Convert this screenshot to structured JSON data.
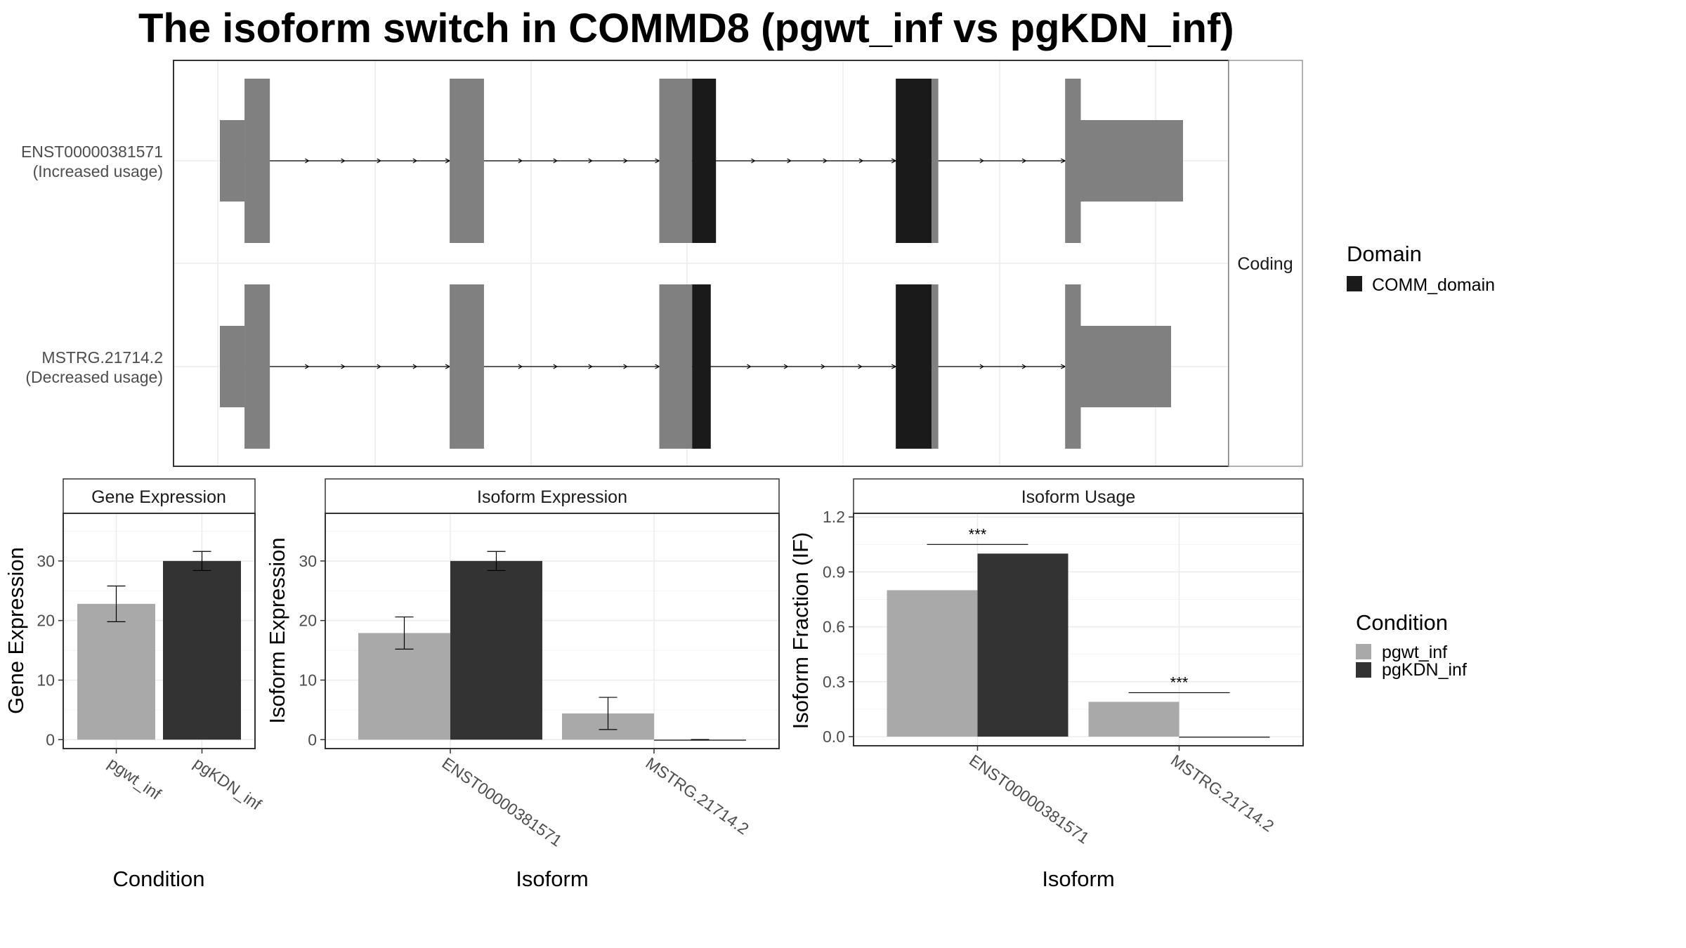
{
  "title": "The isoform switch in COMMD8 (pgwt_inf vs pgKDN_inf)",
  "colors": {
    "exon": "#808080",
    "domain": "#1a1a1a",
    "pgwt_inf": "#a9a9a9",
    "pgKDN_inf": "#333333",
    "grid": "#ebebeb",
    "panel_border": "#333333",
    "strip_border": "#999999"
  },
  "structure_panel": {
    "facet_label": "Coding",
    "isoforms": [
      {
        "id": "ENST00000381571",
        "label_line1": "ENST00000381571",
        "label_line2": "(Increased usage)",
        "exons": [
          {
            "start": 0.0,
            "end": 3.3,
            "kind": "utr"
          },
          {
            "start": 3.3,
            "end": 6.7,
            "kind": "cds"
          },
          {
            "start": 30.8,
            "end": 35.4,
            "kind": "cds"
          },
          {
            "start": 58.9,
            "end": 63.3,
            "kind": "cds"
          },
          {
            "start": 63.3,
            "end": 66.5,
            "kind": "domain"
          },
          {
            "start": 90.6,
            "end": 95.4,
            "kind": "domain"
          },
          {
            "start": 95.4,
            "end": 96.3,
            "kind": "cds"
          },
          {
            "start": 113.3,
            "end": 115.4,
            "kind": "cds"
          },
          {
            "start": 115.4,
            "end": 129.1,
            "kind": "utr"
          }
        ]
      },
      {
        "id": "MSTRG.21714.2",
        "label_line1": "MSTRG.21714.2",
        "label_line2": "(Decreased usage)",
        "exons": [
          {
            "start": 0.0,
            "end": 3.3,
            "kind": "utr"
          },
          {
            "start": 3.3,
            "end": 6.7,
            "kind": "cds"
          },
          {
            "start": 30.8,
            "end": 35.4,
            "kind": "cds"
          },
          {
            "start": 58.9,
            "end": 63.3,
            "kind": "cds"
          },
          {
            "start": 63.3,
            "end": 65.8,
            "kind": "domain"
          },
          {
            "start": 90.6,
            "end": 95.4,
            "kind": "domain"
          },
          {
            "start": 95.4,
            "end": 96.3,
            "kind": "cds"
          },
          {
            "start": 113.3,
            "end": 115.4,
            "kind": "cds"
          },
          {
            "start": 115.4,
            "end": 127.5,
            "kind": "utr"
          }
        ]
      }
    ],
    "legend": {
      "title": "Domain",
      "items": [
        {
          "label": "COMM_domain"
        }
      ]
    }
  },
  "chart_data": [
    {
      "type": "bar",
      "facet_title": "Gene Expression",
      "xlabel": "Condition",
      "ylabel": "Gene Expression",
      "ylim": [
        -1.5,
        38
      ],
      "yticks": [
        0,
        10,
        20,
        30
      ],
      "categories": [
        "pgwt_inf",
        "pgKDN_inf"
      ],
      "series": [
        {
          "name": "pgwt_inf",
          "values": [
            22.8,
            null
          ],
          "err_low": [
            19.8,
            null
          ],
          "err_high": [
            25.8,
            null
          ]
        },
        {
          "name": "pgKDN_inf",
          "values": [
            null,
            30.0
          ],
          "err_low": [
            null,
            28.4
          ],
          "err_high": [
            null,
            31.6
          ]
        }
      ]
    },
    {
      "type": "bar",
      "facet_title": "Isoform Expression",
      "xlabel": "Isoform",
      "ylabel": "Isoform Expression",
      "ylim": [
        -1.5,
        38
      ],
      "yticks": [
        0,
        10,
        20,
        30
      ],
      "categories": [
        "ENST00000381571",
        "MSTRG.21714.2"
      ],
      "series": [
        {
          "name": "pgwt_inf",
          "values": [
            17.9,
            4.4
          ],
          "err_low": [
            15.2,
            1.7
          ],
          "err_high": [
            20.6,
            7.1
          ]
        },
        {
          "name": "pgKDN_inf",
          "values": [
            30.0,
            0.0
          ],
          "err_low": [
            28.4,
            0.0
          ],
          "err_high": [
            31.6,
            0.0
          ]
        }
      ]
    },
    {
      "type": "bar",
      "facet_title": "Isoform Usage",
      "xlabel": "Isoform",
      "ylabel": "Isoform Fraction (IF)",
      "ylim": [
        -0.05,
        1.22
      ],
      "yticks": [
        0.0,
        0.3,
        0.6,
        0.9,
        1.2
      ],
      "ytick_labels": [
        "0.0",
        "0.3",
        "0.6",
        "0.9",
        "1.2"
      ],
      "categories": [
        "ENST00000381571",
        "MSTRG.21714.2"
      ],
      "series": [
        {
          "name": "pgwt_inf",
          "values": [
            0.8,
            0.19
          ]
        },
        {
          "name": "pgKDN_inf",
          "values": [
            1.0,
            0.0
          ]
        }
      ],
      "annotations": [
        {
          "category": "ENST00000381571",
          "text": "***",
          "y": 1.05
        },
        {
          "category": "MSTRG.21714.2",
          "text": "***",
          "y": 0.24
        }
      ]
    }
  ],
  "condition_legend": {
    "title": "Condition",
    "items": [
      {
        "label": "pgwt_inf"
      },
      {
        "label": "pgKDN_inf"
      }
    ]
  }
}
